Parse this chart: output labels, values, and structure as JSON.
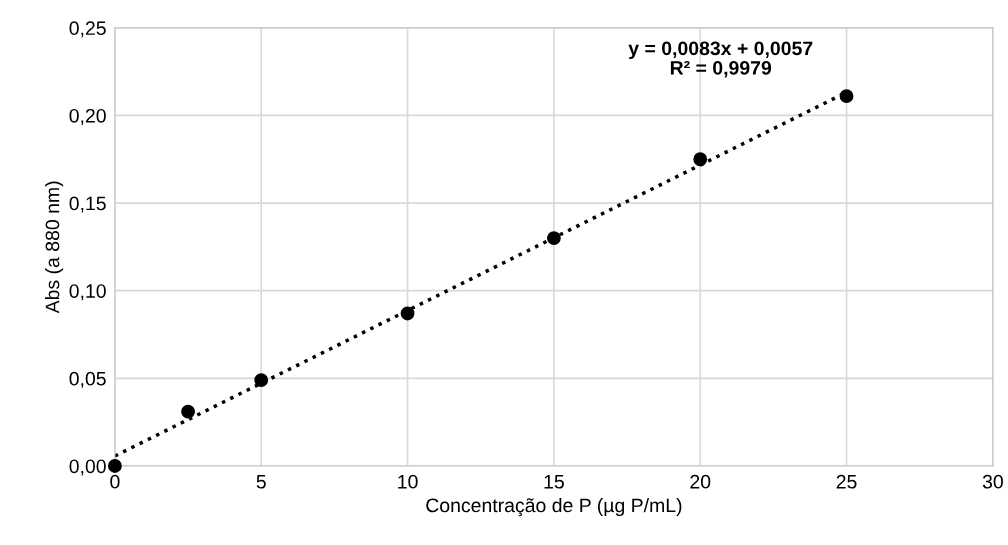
{
  "chart_data": {
    "type": "scatter",
    "xlabel": "Concentração de P (µg P/mL)",
    "ylabel": "Abs (a 880 nm)",
    "annotations": [
      "y = 0,0083x + 0,0057\nR² = 0,9979"
    ],
    "series": [
      {
        "color": "#000000",
        "marker": "circle",
        "x": [
          0,
          2.5,
          5,
          10,
          15,
          20,
          25
        ],
        "values": [
          0.0,
          0.031,
          0.049,
          0.087,
          0.13,
          0.175,
          0.211
        ]
      },
      {
        "type": "line",
        "color": "#000000",
        "marker": "none",
        "line_style": "dotted",
        "x": [
          0,
          25
        ],
        "values": [
          0.0057,
          0.2132
        ]
      }
    ],
    "xlim": [
      0,
      30
    ],
    "xticks": [
      0,
      5,
      10,
      15,
      20,
      25,
      30
    ],
    "ylim": [
      0,
      0.25
    ],
    "yticks": [
      {
        "value": 0,
        "label": "0,00"
      },
      {
        "value": 0.05,
        "label": "0,05"
      },
      {
        "value": 0.1,
        "label": "0,10"
      },
      {
        "value": 0.15,
        "label": "0,15"
      },
      {
        "value": 0.2,
        "label": "0,20"
      },
      {
        "value": 0.25,
        "label": "0,25"
      }
    ],
    "grid": true
  }
}
